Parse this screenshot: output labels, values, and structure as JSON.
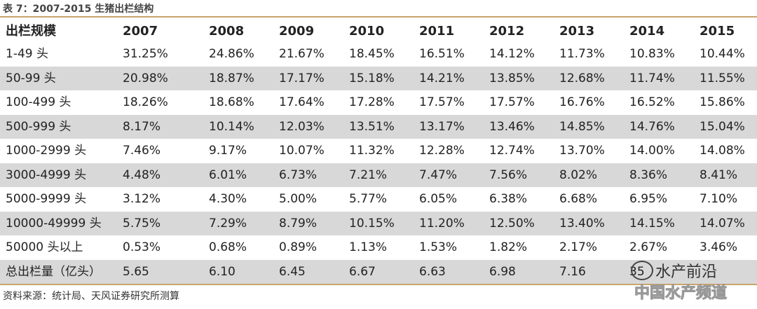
{
  "header": {
    "title": "表 7：2007-2015 生猪出栏结构"
  },
  "table": {
    "columns": [
      "出栏规模",
      "2007",
      "2008",
      "2009",
      "2010",
      "2011",
      "2012",
      "2013",
      "2014",
      "2015"
    ],
    "rows": [
      [
        "1-49 头",
        "31.25%",
        "24.86%",
        "21.67%",
        "18.45%",
        "16.51%",
        "14.12%",
        "11.73%",
        "10.83%",
        "10.44%"
      ],
      [
        "50-99 头",
        "20.98%",
        "18.87%",
        "17.17%",
        "15.18%",
        "14.21%",
        "13.85%",
        "12.68%",
        "11.74%",
        "11.55%"
      ],
      [
        "100-499 头",
        "18.26%",
        "18.68%",
        "17.64%",
        "17.28%",
        "17.57%",
        "17.57%",
        "16.76%",
        "16.52%",
        "15.86%"
      ],
      [
        "500-999 头",
        "8.17%",
        "10.14%",
        "12.03%",
        "13.51%",
        "13.17%",
        "13.46%",
        "14.85%",
        "14.76%",
        "15.04%"
      ],
      [
        "1000-2999 头",
        "7.46%",
        "9.17%",
        "10.07%",
        "11.32%",
        "12.28%",
        "12.74%",
        "13.70%",
        "14.00%",
        "14.08%"
      ],
      [
        "3000-4999 头",
        "4.48%",
        "6.01%",
        "6.73%",
        "7.21%",
        "7.47%",
        "7.56%",
        "8.02%",
        "8.36%",
        "8.41%"
      ],
      [
        "5000-9999 头",
        "3.12%",
        "4.30%",
        "5.00%",
        "5.77%",
        "6.05%",
        "6.38%",
        "6.68%",
        "6.95%",
        "7.10%"
      ],
      [
        "10000-49999 头",
        "5.75%",
        "7.29%",
        "8.79%",
        "10.15%",
        "11.20%",
        "12.50%",
        "13.40%",
        "14.15%",
        "14.07%"
      ],
      [
        "50000 头以上",
        "0.53%",
        "0.68%",
        "0.89%",
        "1.13%",
        "1.53%",
        "1.82%",
        "2.17%",
        "2.67%",
        "3.46%"
      ],
      [
        "总出栏量（亿头）",
        "5.65",
        "6.10",
        "6.45",
        "6.67",
        "6.63",
        "6.98",
        "7.16",
        "35",
        null
      ]
    ]
  },
  "footer": {
    "source": "资料来源：统计局、天风证券研究所测算"
  },
  "watermark": {
    "label": "水产前沿",
    "sublabel": "中国水产频道"
  }
}
